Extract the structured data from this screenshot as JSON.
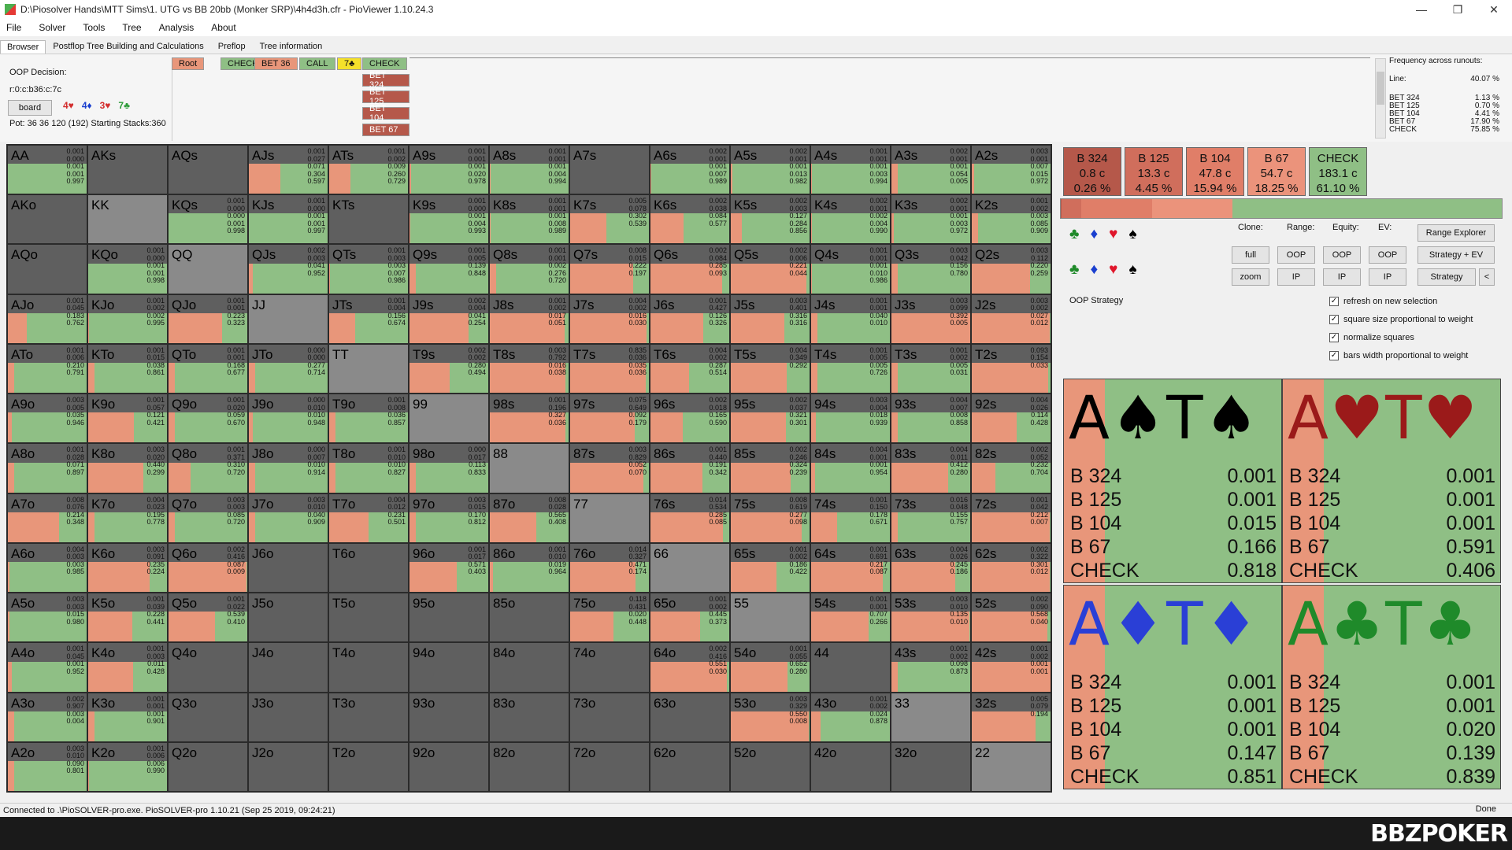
{
  "window": {
    "title": "D:\\Piosolver Hands\\MTT Sims\\1. UTG vs BB 20bb (Monker SRP)\\4h4d3h.cfr - PioViewer 1.10.24.3",
    "min": "—",
    "max": "❐",
    "close": "✕"
  },
  "menu": [
    "File",
    "Solver",
    "Tools",
    "Tree",
    "Analysis",
    "About"
  ],
  "tabs": [
    "Browser",
    "Postflop Tree Building and Calculations",
    "Preflop",
    "Tree information"
  ],
  "info": {
    "decision": "OOP Decision:",
    "node": "r:0:c:b36:c:7c",
    "board_label": "board",
    "board_cards": [
      {
        "text": "4♥",
        "color": "#d32f2f"
      },
      {
        "text": "4♦",
        "color": "#1a3fcf"
      },
      {
        "text": "3♥",
        "color": "#d32f2f"
      },
      {
        "text": "7♣",
        "color": "#2e9c3a"
      }
    ],
    "pot": "Pot: 36 36 120 (192) Starting Stacks:360"
  },
  "crumbs": [
    {
      "text": "Root",
      "bg": "#e8967a"
    },
    {
      "text": "CHECK",
      "bg": "#8fbf85"
    },
    {
      "text": "BET 36",
      "bg": "#e8967a"
    },
    {
      "text": "CALL",
      "bg": "#8fbf85"
    },
    {
      "text": "7♣",
      "bg": "#f5e12a"
    },
    {
      "text": "CHECK",
      "bg": "#8fbf85"
    }
  ],
  "bet_options": [
    "BET 324",
    "BET 125",
    "BET 104",
    "BET 67"
  ],
  "freq": {
    "head": "Frequency across runouts:",
    "rows": [
      {
        "k": "Line:",
        "v": "40.07 %"
      },
      {
        "k": "BET 324",
        "v": "1.13 %"
      },
      {
        "k": "BET 125",
        "v": "0.70 %"
      },
      {
        "k": "BET 104",
        "v": "4.41 %"
      },
      {
        "k": "BET 67",
        "v": "17.90 %"
      },
      {
        "k": "CHECK",
        "v": "75.85 %"
      }
    ]
  },
  "actions": [
    {
      "name": "B 324",
      "combos": "0.8 c",
      "pct": "0.26 %",
      "bg": "#b5584a",
      "frac": 0.0026
    },
    {
      "name": "B 125",
      "combos": "13.3 c",
      "pct": "4.45 %",
      "bg": "#d06e5c",
      "frac": 0.0445
    },
    {
      "name": "B 104",
      "combos": "47.8 c",
      "pct": "15.94 %",
      "bg": "#e07e68",
      "frac": 0.1594
    },
    {
      "name": "B 67",
      "combos": "54.7 c",
      "pct": "18.25 %",
      "bg": "#eb937b",
      "frac": 0.1825
    },
    {
      "name": "CHECK",
      "combos": "183.1 c",
      "pct": "61.10 %",
      "bg": "#8fbf85",
      "frac": 0.611
    }
  ],
  "controls": {
    "clone": "Clone:",
    "range": "Range:",
    "equity": "Equity:",
    "ev": "EV:",
    "full": "full",
    "zoom": "zoom",
    "oop": "OOP",
    "ip": "IP",
    "range_explorer": "Range Explorer",
    "strategy_ev": "Strategy + EV",
    "strategy": "Strategy",
    "back": "<",
    "oop_strategy": "OOP Strategy",
    "checks": [
      "refresh on new selection",
      "square size proportional to weight",
      "normalize squares",
      "bars width proportional to weight"
    ]
  },
  "combos": [
    {
      "cards": "A♠T♠",
      "color": "#000",
      "vals": [
        "0.001",
        "0.001",
        "0.015",
        "0.166",
        "0.818"
      ]
    },
    {
      "cards": "A♥T♥",
      "color": "#9b1a1a",
      "vals": [
        "0.001",
        "0.001",
        "0.001",
        "0.591",
        "0.406"
      ]
    },
    {
      "cards": "A♦T♦",
      "color": "#2a3fd6",
      "vals": [
        "0.001",
        "0.001",
        "0.001",
        "0.147",
        "0.851"
      ]
    },
    {
      "cards": "A♣T♣",
      "color": "#1f8a2a",
      "vals": [
        "0.001",
        "0.001",
        "0.020",
        "0.139",
        "0.839"
      ]
    }
  ],
  "combo_labels": [
    "B 324",
    "B 125",
    "B 104",
    "B 67",
    "CHECK"
  ],
  "grid": {
    "colors": {
      "bet": "#e8967a",
      "check": "#8fbf85",
      "empty": "#5f5f5f",
      "pair_empty": "#8a8a8a"
    },
    "cells": [
      [
        "AA",
        "0.001|0.000|0.001|0.001|0.997",
        "c"
      ],
      [
        "AKs",
        "",
        "e"
      ],
      [
        "AQs",
        "",
        "e"
      ],
      [
        "AJs",
        "0.001|0.027|0.071|0.304|0.597",
        "m"
      ],
      [
        "ATs",
        "0.001|0.002|0.009|0.260|0.729",
        "m"
      ],
      [
        "A9s",
        "0.001|0.001|0.001|0.020|0.978",
        "c"
      ],
      [
        "A8s",
        "0.001|0.001|0.001|0.004|0.994",
        "c"
      ],
      [
        "A7s",
        "",
        "e"
      ],
      [
        "A6s",
        "0.002|0.001|0.001|0.007|0.989",
        "c"
      ],
      [
        "A5s",
        "0.002|0.001|0.001|0.013|0.982",
        "c"
      ],
      [
        "A4s",
        "0.001|0.001|0.001|0.003|0.994",
        "c"
      ],
      [
        "A3s",
        "0.002|0.001|0.001|0.054|0.005",
        "c"
      ],
      [
        "A2s",
        "0.003|0.001|0.007|0.015|0.972",
        "c"
      ],
      [
        "AKo",
        "",
        "e"
      ],
      [
        "KK",
        "",
        "p"
      ],
      [
        "KQs",
        "0.001|0.000|0.000|0.001|0.998",
        "c"
      ],
      [
        "KJs",
        "0.001|0.000|0.001|0.001|0.997",
        "c"
      ],
      [
        "KTs",
        "",
        "e"
      ],
      [
        "K9s",
        "0.001|0.000|0.001|0.004|0.993",
        "c"
      ],
      [
        "K8s",
        "0.001|0.001|0.001|0.008|0.989",
        "c"
      ],
      [
        "K7s",
        "0.005|0.078|0.302|0.539",
        "m"
      ],
      [
        "K6s",
        "0.002|0.038|0.084|0.577",
        "m"
      ],
      [
        "K5s",
        "0.002|0.003|0.127|0.284|0.856",
        "m"
      ],
      [
        "K4s",
        "0.002|0.001|0.002|0.004|0.990",
        "c"
      ],
      [
        "K3s",
        "0.002|0.001|0.001|0.003|0.972",
        "c"
      ],
      [
        "K2s",
        "0.001|0.002|0.003|0.085|0.909",
        "c"
      ],
      [
        "AQo",
        "",
        "e"
      ],
      [
        "KQo",
        "0.001|0.000|0.001|0.001|0.998",
        "c"
      ],
      [
        "QQ",
        "",
        "p"
      ],
      [
        "QJs",
        "0.002|0.003|0.041|0.952",
        "c"
      ],
      [
        "QTs",
        "0.001|0.003|0.003|0.007|0.986",
        "c"
      ],
      [
        "Q9s",
        "0.001|0.005|0.139|0.848",
        "c"
      ],
      [
        "Q8s",
        "0.001|0.001|0.002|0.276|0.720",
        "c"
      ],
      [
        "Q7s",
        "0.008|0.015|0.222|0.197",
        "m"
      ],
      [
        "Q6s",
        "0.002|0.084|0.285|0.093",
        "m"
      ],
      [
        "Q5s",
        "0.002|0.006|0.221|0.044",
        "m"
      ],
      [
        "Q4s",
        "0.001|0.001|0.001|0.010|0.986",
        "c"
      ],
      [
        "Q3s",
        "0.003|0.042|0.156|0.780",
        "c"
      ],
      [
        "Q2s",
        "0.003|0.112|0.220|0.259",
        "m"
      ],
      [
        "AJo",
        "0.001|0.045|0.183|0.762",
        "m"
      ],
      [
        "KJo",
        "0.001|0.002|0.002|0.995",
        "c"
      ],
      [
        "QJo",
        "0.001|0.001|0.223|0.323",
        "m"
      ],
      [
        "JJ",
        "",
        "p"
      ],
      [
        "JTs",
        "0.001|0.004|0.156|0.674",
        "m"
      ],
      [
        "J9s",
        "0.002|0.004|0.041|0.254",
        "m"
      ],
      [
        "J8s",
        "0.001|0.002|0.017|0.051",
        "m"
      ],
      [
        "J7s",
        "0.004|0.002|0.016|0.030",
        "m"
      ],
      [
        "J6s",
        "0.001|0.427|0.126|0.326",
        "m"
      ],
      [
        "J5s",
        "0.003|0.401|0.316|0.316",
        "m"
      ],
      [
        "J4s",
        "0.001|0.001|0.040|0.010",
        "c"
      ],
      [
        "J3s",
        "0.003|0.099|0.392|0.005",
        "m"
      ],
      [
        "J2s",
        "0.003|0.002|0.027|0.012",
        "m"
      ],
      [
        "ATo",
        "0.001|0.006|0.210|0.791",
        "c"
      ],
      [
        "KTo",
        "0.001|0.015|0.038|0.861",
        "c"
      ],
      [
        "QTo",
        "0.001|0.001|0.168|0.677",
        "c"
      ],
      [
        "JTo",
        "0.000|0.000|0.277|0.714",
        "c"
      ],
      [
        "TT",
        "",
        "p"
      ],
      [
        "T9s",
        "0.002|0.002|0.280|0.494",
        "m"
      ],
      [
        "T8s",
        "0.003|0.792|0.016|0.038",
        "m"
      ],
      [
        "T7s",
        "0.835|0.036|0.035|0.036",
        "b"
      ],
      [
        "T6s",
        "0.004|0.002|0.287|0.514",
        "m"
      ],
      [
        "T5s",
        "0.004|0.349|0.292",
        "m"
      ],
      [
        "T4s",
        "0.001|0.005|0.005|0.726",
        "c"
      ],
      [
        "T3s",
        "0.001|0.002|0.005|0.031",
        "c"
      ],
      [
        "T2s",
        "0.093|0.154|0.033",
        "m"
      ],
      [
        "A9o",
        "0.003|0.005|0.035|0.946",
        "c"
      ],
      [
        "K9o",
        "0.001|0.057|0.121|0.421",
        "m"
      ],
      [
        "Q9o",
        "0.001|0.020|0.059|0.670",
        "c"
      ],
      [
        "J9o",
        "0.000|0.010|0.010|0.948",
        "c"
      ],
      [
        "T9o",
        "0.001|0.008|0.036|0.857",
        "c"
      ],
      [
        "99",
        "",
        "p"
      ],
      [
        "98s",
        "0.001|0.196|0.327|0.036",
        "m"
      ],
      [
        "97s",
        "0.075|0.649|0.092|0.179",
        "m"
      ],
      [
        "96s",
        "0.002|0.018|0.165|0.590",
        "m"
      ],
      [
        "95s",
        "0.002|0.037|0.321|0.301",
        "m"
      ],
      [
        "94s",
        "0.003|0.004|0.018|0.939",
        "c"
      ],
      [
        "93s",
        "0.004|0.007|0.008|0.858",
        "c"
      ],
      [
        "92s",
        "0.004|0.026|0.114|0.428",
        "m"
      ],
      [
        "A8o",
        "0.001|0.028|0.071|0.897",
        "c"
      ],
      [
        "K8o",
        "0.003|0.020|0.440|0.299",
        "m"
      ],
      [
        "Q8o",
        "0.001|0.371|0.310|0.720",
        "m"
      ],
      [
        "J8o",
        "0.000|0.007|0.010|0.914",
        "c"
      ],
      [
        "T8o",
        "0.001|0.010|0.010|0.827",
        "c"
      ],
      [
        "98o",
        "0.000|0.017|0.113|0.833",
        "c"
      ],
      [
        "88",
        "",
        "p"
      ],
      [
        "87s",
        "0.003|0.829|0.052|0.070",
        "b"
      ],
      [
        "86s",
        "0.001|0.440|0.191|0.342",
        "m"
      ],
      [
        "85s",
        "0.002|0.246|0.324|0.239",
        "m"
      ],
      [
        "84s",
        "0.004|0.001|0.001|0.954",
        "c"
      ],
      [
        "83s",
        "0.004|0.011|0.412|0.280",
        "m"
      ],
      [
        "82s",
        "0.002|0.052|0.232|0.704",
        "m"
      ],
      [
        "A7o",
        "0.008|0.076|0.214|0.348",
        "m"
      ],
      [
        "K7o",
        "0.004|0.023|0.195|0.778",
        "c"
      ],
      [
        "Q7o",
        "0.003|0.003|0.085|0.720",
        "c"
      ],
      [
        "J7o",
        "0.003|0.010|0.040|0.909",
        "c"
      ],
      [
        "T7o",
        "0.004|0.012|0.231|0.501",
        "m"
      ],
      [
        "97o",
        "0.003|0.015|0.170|0.812",
        "c"
      ],
      [
        "87o",
        "0.008|0.028|0.565|0.408",
        "m"
      ],
      [
        "77",
        "",
        "p"
      ],
      [
        "76s",
        "0.014|0.534|0.285|0.085",
        "b"
      ],
      [
        "75s",
        "0.008|0.619|0.277|0.098",
        "b"
      ],
      [
        "74s",
        "0.001|0.150|0.178|0.671",
        "m"
      ],
      [
        "73s",
        "0.016|0.048|0.155|0.757",
        "c"
      ],
      [
        "72s",
        "0.001|0.042|0.212|0.007",
        "m"
      ],
      [
        "A6o",
        "0.004|0.003|0.003|0.985",
        "c"
      ],
      [
        "K6o",
        "0.003|0.091|0.235|0.224",
        "m"
      ],
      [
        "Q6o",
        "0.002|0.416|0.087|0.009",
        "m"
      ],
      [
        "J6o",
        "",
        "e"
      ],
      [
        "T6o",
        "",
        "e"
      ],
      [
        "96o",
        "0.001|0.017|0.571|0.403",
        "m"
      ],
      [
        "86o",
        "0.001|0.010|0.019|0.964",
        "c"
      ],
      [
        "76o",
        "0.014|0.327|0.471|0.174",
        "b"
      ],
      [
        "66",
        "",
        "p"
      ],
      [
        "65s",
        "0.001|0.002|0.186|0.422",
        "m"
      ],
      [
        "64s",
        "0.001|0.691|0.217|0.087",
        "b"
      ],
      [
        "63s",
        "0.004|0.026|0.245|0.186",
        "m"
      ],
      [
        "62s",
        "0.002|0.322|0.301|0.012",
        "b"
      ],
      [
        "A5o",
        "0.003|0.003|0.015|0.980",
        "c"
      ],
      [
        "K5o",
        "0.001|0.039|0.228|0.441",
        "m"
      ],
      [
        "Q5o",
        "0.001|0.022|0.539|0.410",
        "m"
      ],
      [
        "J5o",
        "",
        "e"
      ],
      [
        "T5o",
        "",
        "e"
      ],
      [
        "95o",
        "",
        "e"
      ],
      [
        "85o",
        "",
        "e"
      ],
      [
        "75o",
        "0.118|0.431|0.020|0.448",
        "b"
      ],
      [
        "65o",
        "0.001|0.002|0.445|0.373",
        "m"
      ],
      [
        "55",
        "",
        "p"
      ],
      [
        "54s",
        "0.001|0.001|0.707|0.266",
        "m"
      ],
      [
        "53s",
        "0.003|0.010|0.135|0.010",
        "m"
      ],
      [
        "52s",
        "0.002|0.090|0.568|0.040",
        "b"
      ],
      [
        "A4o",
        "0.001|0.045|0.001|0.952",
        "c"
      ],
      [
        "K4o",
        "0.001|0.003|0.011|0.428",
        "m"
      ],
      [
        "Q4o",
        "",
        "e"
      ],
      [
        "J4o",
        "",
        "e"
      ],
      [
        "T4o",
        "",
        "e"
      ],
      [
        "94o",
        "",
        "e"
      ],
      [
        "84o",
        "",
        "e"
      ],
      [
        "74o",
        "",
        "e"
      ],
      [
        "64o",
        "0.002|0.416|0.551|0.030",
        "b"
      ],
      [
        "54o",
        "0.001|0.055|0.652|0.280",
        "b"
      ],
      [
        "44",
        "",
        "e"
      ],
      [
        "43s",
        "0.001|0.002|0.098|0.873",
        "c"
      ],
      [
        "42s",
        "0.001|0.002|0.001|0.001",
        "e"
      ],
      [
        "A3o",
        "0.002|0.907|0.003|0.004",
        "c"
      ],
      [
        "K3o",
        "0.001|0.001|0.001|0.901",
        "c"
      ],
      [
        "Q3o",
        "",
        "e"
      ],
      [
        "J3o",
        "",
        "e"
      ],
      [
        "T3o",
        "",
        "e"
      ],
      [
        "93o",
        "",
        "e"
      ],
      [
        "83o",
        "",
        "e"
      ],
      [
        "73o",
        "",
        "e"
      ],
      [
        "63o",
        "",
        "e"
      ],
      [
        "53o",
        "0.003|0.329|0.550|0.008",
        "m"
      ],
      [
        "43o",
        "0.001|0.002|0.024|0.878",
        "m"
      ],
      [
        "33",
        "",
        "p"
      ],
      [
        "32s",
        "0.005|0.079|0.194",
        "m"
      ],
      [
        "A2o",
        "0.003|0.010|0.090|0.801",
        "c"
      ],
      [
        "K2o",
        "0.001|0.006|0.006|0.990",
        "c"
      ],
      [
        "Q2o",
        "",
        "e"
      ],
      [
        "J2o",
        "",
        "e"
      ],
      [
        "T2o",
        "",
        "e"
      ],
      [
        "92o",
        "",
        "e"
      ],
      [
        "82o",
        "",
        "e"
      ],
      [
        "72o",
        "",
        "e"
      ],
      [
        "62o",
        "",
        "e"
      ],
      [
        "52o",
        "",
        "e"
      ],
      [
        "42o",
        "",
        "e"
      ],
      [
        "32o",
        "",
        "e"
      ],
      [
        "22",
        "",
        "p"
      ]
    ]
  },
  "status": "Connected to .\\PioSOLVER-pro.exe. PioSOLVER-pro 1.10.21 (Sep 25 2019, 09:24:21)",
  "status_right": "Done",
  "logo": "BBZPOKER"
}
